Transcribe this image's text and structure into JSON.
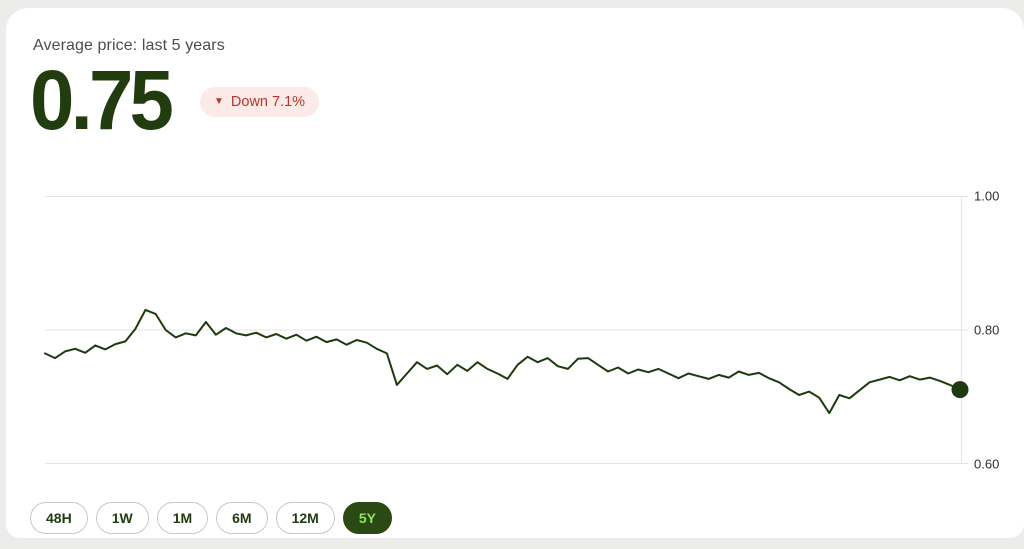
{
  "header": {
    "subtitle": "Average price: last 5 years",
    "price": "0.75",
    "change_label": "Down 7.1%",
    "change_direction": "down",
    "triangle_icon": "▼"
  },
  "chart_data": {
    "type": "line",
    "title": "Average price: last 5 years",
    "current_value": 0.75,
    "change_percent": -7.1,
    "x_range": "last 5 years",
    "ylim": [
      0.6,
      1.0
    ],
    "y_ticks": [
      1.0,
      0.8,
      0.6
    ],
    "y_tick_labels": [
      "1.00",
      "0.80",
      "0.60"
    ],
    "x_ticks": [],
    "grid": true,
    "legend": false,
    "end_dot": true,
    "values": [
      0.765,
      0.758,
      0.768,
      0.772,
      0.766,
      0.777,
      0.771,
      0.779,
      0.783,
      0.802,
      0.83,
      0.824,
      0.8,
      0.789,
      0.795,
      0.792,
      0.812,
      0.793,
      0.803,
      0.795,
      0.792,
      0.796,
      0.789,
      0.794,
      0.787,
      0.793,
      0.784,
      0.79,
      0.782,
      0.786,
      0.778,
      0.785,
      0.781,
      0.772,
      0.765,
      0.718,
      0.735,
      0.752,
      0.742,
      0.747,
      0.734,
      0.748,
      0.739,
      0.752,
      0.742,
      0.735,
      0.727,
      0.748,
      0.76,
      0.752,
      0.758,
      0.746,
      0.742,
      0.757,
      0.758,
      0.748,
      0.738,
      0.744,
      0.735,
      0.741,
      0.737,
      0.742,
      0.735,
      0.728,
      0.735,
      0.731,
      0.727,
      0.733,
      0.729,
      0.738,
      0.733,
      0.736,
      0.728,
      0.722,
      0.712,
      0.703,
      0.708,
      0.699,
      0.676,
      0.703,
      0.698,
      0.71,
      0.722,
      0.726,
      0.73,
      0.725,
      0.731,
      0.726,
      0.729,
      0.724,
      0.718,
      0.711
    ]
  },
  "controls": {
    "ranges": [
      {
        "label": "48H",
        "selected": false
      },
      {
        "label": "1W",
        "selected": false
      },
      {
        "label": "1M",
        "selected": false
      },
      {
        "label": "6M",
        "selected": false
      },
      {
        "label": "12M",
        "selected": false
      },
      {
        "label": "5Y",
        "selected": true
      }
    ]
  },
  "colors": {
    "accent_green": "#213c0e",
    "line_green": "#1e3a0f",
    "badge_bg": "#fceae8",
    "badge_red": "#b5362a",
    "selected_pill_bg": "#2b4913",
    "selected_pill_text": "#8ee26b",
    "grid": "#e4e4e4",
    "page_bg": "#ecedea"
  }
}
